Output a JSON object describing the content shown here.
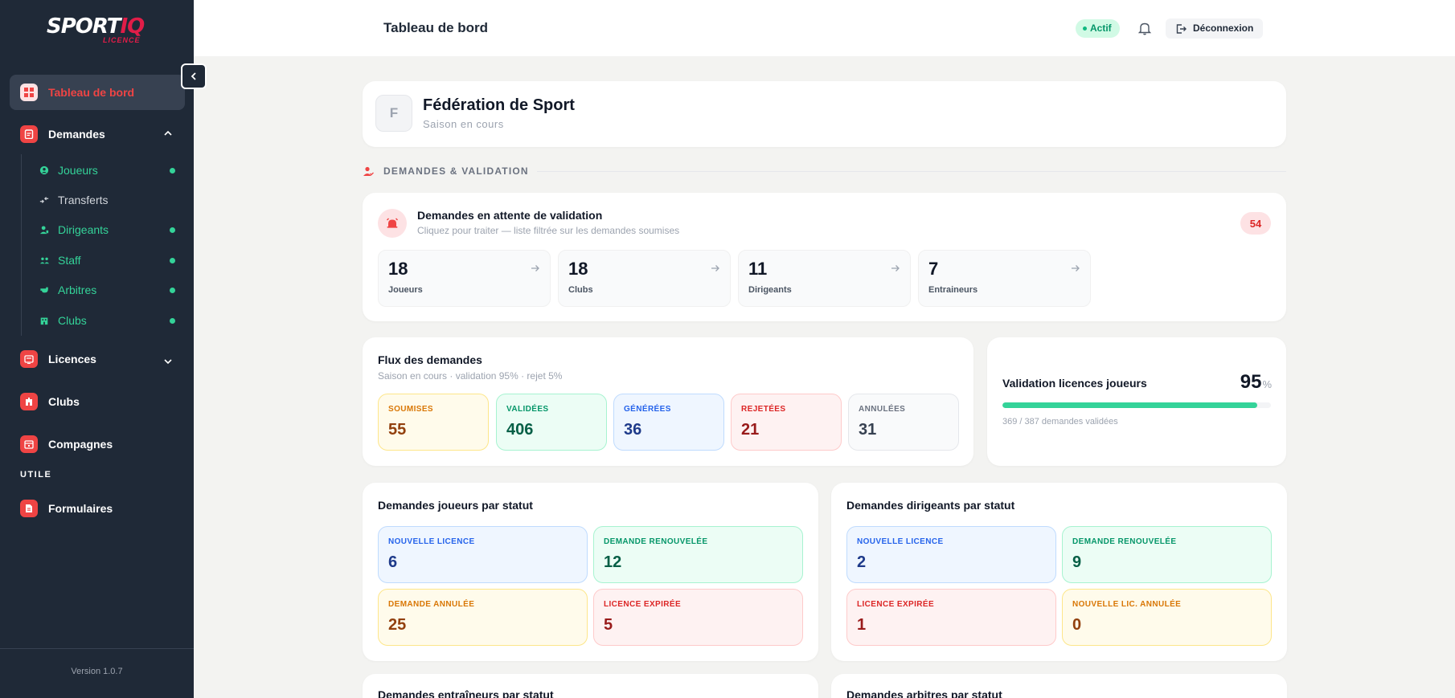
{
  "sidebar": {
    "logo": {
      "brand_main": "SPORT",
      "brand_accent": "IQ",
      "sub": "LICENCE"
    },
    "nav": {
      "dashboard": "Tableau de bord",
      "demandes": "Demandes",
      "licences": "Licences",
      "clubs": "Clubs",
      "compagnes": "Compagnes",
      "formulaires": "Formulaires"
    },
    "sub_items": {
      "joueurs": "Joueurs",
      "transferts": "Transferts",
      "dirigeants": "Dirigeants",
      "staff": "Staff",
      "arbitres": "Arbitres",
      "clubs": "Clubs"
    },
    "section_utile": "UTILE",
    "version": "Version 1.0.7"
  },
  "topbar": {
    "title": "Tableau de bord",
    "status": "Actif",
    "logout": "Déconnexion"
  },
  "federation": {
    "initial": "F",
    "name": "Fédération de Sport",
    "season": "Saison en cours"
  },
  "section": {
    "title": "DEMANDES & VALIDATION"
  },
  "pending": {
    "title": "Demandes en attente de validation",
    "subtitle": "Cliquez pour traiter — liste filtrée sur les demandes soumises",
    "badge": "54",
    "items": [
      {
        "value": "18",
        "label": "Joueurs"
      },
      {
        "value": "18",
        "label": "Clubs"
      },
      {
        "value": "11",
        "label": "Dirigeants"
      },
      {
        "value": "7",
        "label": "Entraineurs"
      }
    ]
  },
  "flux": {
    "title": "Flux des demandes",
    "subtitle": "Saison en cours · validation 95% · rejet 5%",
    "stats": [
      {
        "label": "SOUMISES",
        "value": "55"
      },
      {
        "label": "VALIDÉES",
        "value": "406"
      },
      {
        "label": "GÉNÉRÉES",
        "value": "36"
      },
      {
        "label": "REJETÉES",
        "value": "21"
      },
      {
        "label": "ANNULÉES",
        "value": "31"
      }
    ]
  },
  "validation": {
    "title": "Validation licences joueurs",
    "percent": "95",
    "percent_sign": "%",
    "progress": 0.95,
    "detail": "369 / 387 demandes validées"
  },
  "joueurs_status": {
    "title": "Demandes joueurs par statut",
    "items": [
      {
        "label": "NOUVELLE LICENCE",
        "value": "6"
      },
      {
        "label": "DEMANDE RENOUVELÉE",
        "value": "12"
      },
      {
        "label": "DEMANDE ANNULÉE",
        "value": "25"
      },
      {
        "label": "LICENCE EXPIRÉE",
        "value": "5"
      }
    ]
  },
  "dirigeants_status": {
    "title": "Demandes dirigeants par statut",
    "items": [
      {
        "label": "NOUVELLE LICENCE",
        "value": "2"
      },
      {
        "label": "DEMANDE RENOUVELÉE",
        "value": "9"
      },
      {
        "label": "LICENCE EXPIRÉE",
        "value": "1"
      },
      {
        "label": "NOUVELLE LIC. ANNULÉE",
        "value": "0"
      }
    ]
  },
  "bottom": {
    "entraineurs_title": "Demandes entraîneurs par statut",
    "arbitres_title": "Demandes arbitres par statut"
  },
  "colors": {
    "sidebar_bg": "#1f2937",
    "accent_red": "#ef4444",
    "accent_green": "#34d399"
  }
}
